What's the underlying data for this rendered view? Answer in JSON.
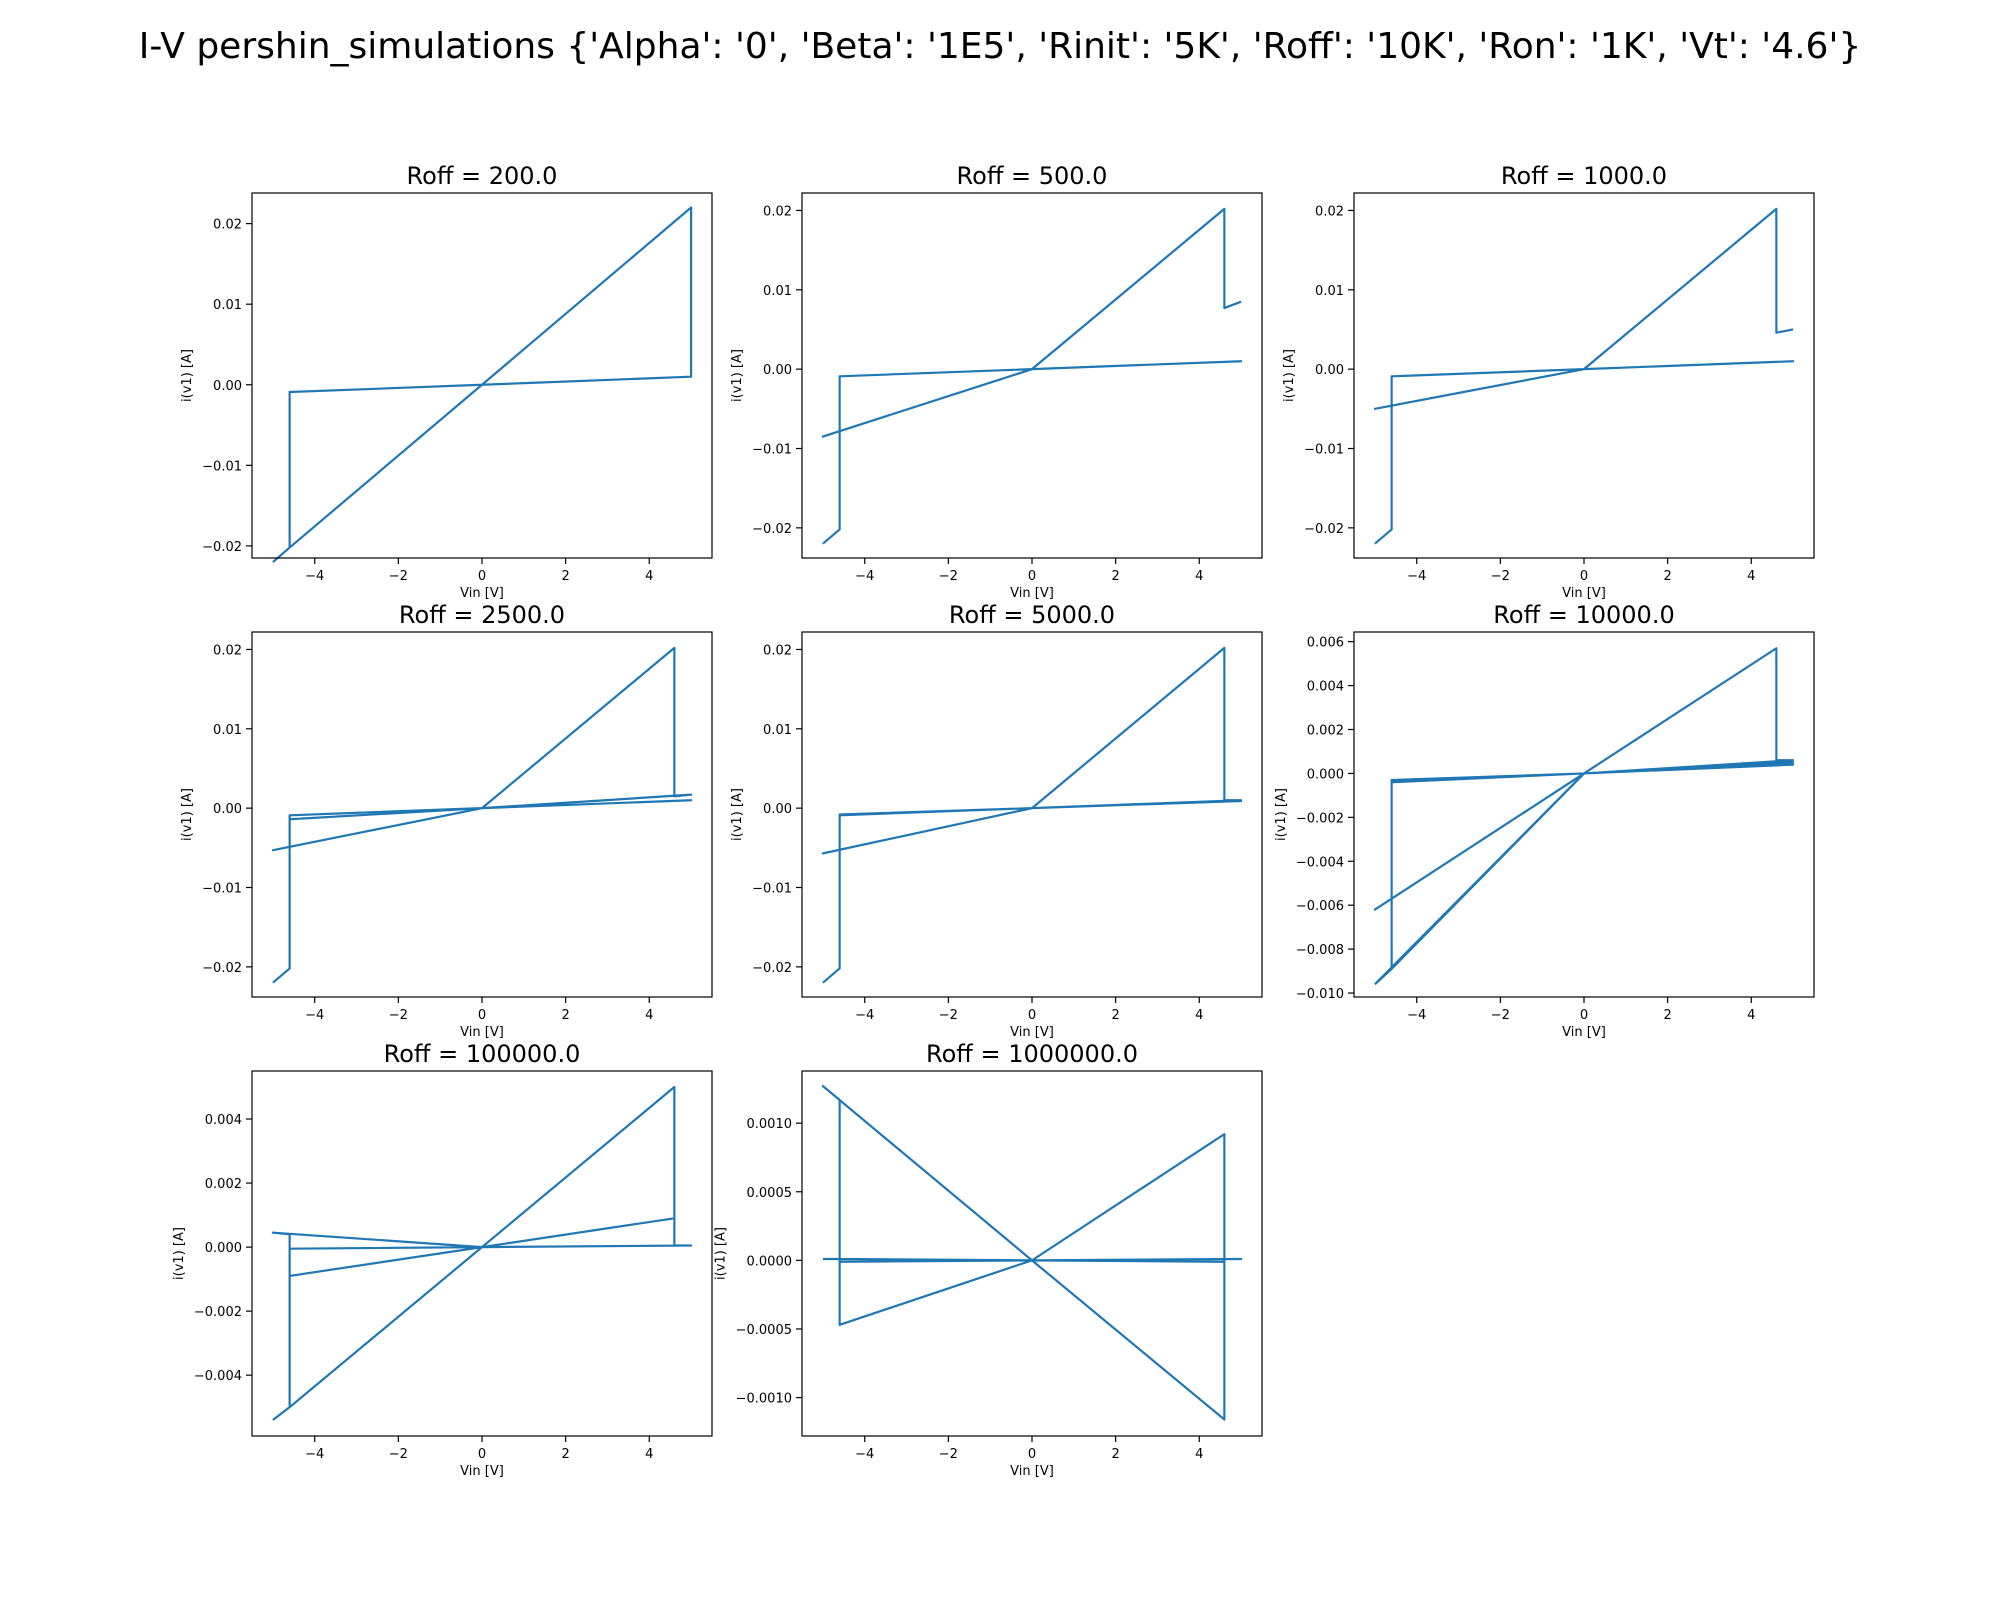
{
  "figure": {
    "title": "I-V pershin_simulations {'Alpha': '0', 'Beta': '1E5', 'Rinit': '5K', 'Roff': '10K', 'Ron': '1K', 'Vt': '4.6'}"
  },
  "colors": {
    "line": "#1f77b4",
    "axes": "#000000",
    "background": "#ffffff"
  },
  "chart_data": [
    {
      "type": "line",
      "title": "Roff = 200.0",
      "xlabel": "Vin [V]",
      "ylabel": "i(v1) [A]",
      "xlim": [
        -5.5,
        5.5
      ],
      "ylim": [
        -0.0215,
        0.0238
      ],
      "xticks": [
        -4,
        -2,
        0,
        2,
        4
      ],
      "xtick_labels": [
        "−4",
        "−2",
        "0",
        "2",
        "4"
      ],
      "yticks": [
        -0.02,
        -0.01,
        0.0,
        0.01,
        0.02
      ],
      "ytick_labels": [
        "−0.02",
        "−0.01",
        "0.00",
        "0.01",
        "0.02"
      ],
      "grid": false,
      "series": [
        {
          "x": [
            -5,
            -4.6,
            -4.6,
            0,
            5,
            5,
            0,
            -4.6,
            -4.6,
            -5
          ],
          "y": [
            -0.022,
            -0.0202,
            -0.0009,
            0,
            0.001,
            0.022,
            0,
            -0.0202,
            -0.0202,
            -0.022
          ]
        }
      ]
    },
    {
      "type": "line",
      "title": "Roff = 500.0",
      "xlabel": "Vin [V]",
      "ylabel": "i(v1) [A]",
      "xlim": [
        -5.5,
        5.5
      ],
      "ylim": [
        -0.0238,
        0.0222
      ],
      "xticks": [
        -4,
        -2,
        0,
        2,
        4
      ],
      "xtick_labels": [
        "−4",
        "−2",
        "0",
        "2",
        "4"
      ],
      "yticks": [
        -0.02,
        -0.01,
        0.0,
        0.01,
        0.02
      ],
      "ytick_labels": [
        "−0.02",
        "−0.01",
        "0.00",
        "0.01",
        "0.02"
      ],
      "grid": false,
      "series": [
        {
          "x": [
            -5,
            -4.6,
            -4.6,
            0,
            5,
            0,
            -5,
            0,
            4.6,
            4.6,
            5
          ],
          "y": [
            -0.022,
            -0.0202,
            -0.0009,
            0,
            0.001,
            0,
            -0.0085,
            0,
            0.0202,
            0.0077,
            0.0085
          ]
        }
      ]
    },
    {
      "type": "line",
      "title": "Roff = 1000.0",
      "xlabel": "Vin [V]",
      "ylabel": "i(v1) [A]",
      "xlim": [
        -5.5,
        5.5
      ],
      "ylim": [
        -0.0238,
        0.0222
      ],
      "xticks": [
        -4,
        -2,
        0,
        2,
        4
      ],
      "xtick_labels": [
        "−4",
        "−2",
        "0",
        "2",
        "4"
      ],
      "yticks": [
        -0.02,
        -0.01,
        0.0,
        0.01,
        0.02
      ],
      "ytick_labels": [
        "−0.02",
        "−0.01",
        "0.00",
        "0.01",
        "0.02"
      ],
      "grid": false,
      "series": [
        {
          "x": [
            -5,
            -4.6,
            -4.6,
            0,
            5,
            0,
            -5,
            0,
            4.6,
            4.6,
            5
          ],
          "y": [
            -0.022,
            -0.0202,
            -0.0009,
            0,
            0.001,
            0,
            -0.005,
            0,
            0.0202,
            0.0046,
            0.005
          ]
        }
      ]
    },
    {
      "type": "line",
      "title": "Roff = 2500.0",
      "xlabel": "Vin [V]",
      "ylabel": "i(v1) [A]",
      "xlim": [
        -5.5,
        5.5
      ],
      "ylim": [
        -0.0238,
        0.0222
      ],
      "xticks": [
        -4,
        -2,
        0,
        2,
        4
      ],
      "xtick_labels": [
        "−4",
        "−2",
        "0",
        "2",
        "4"
      ],
      "yticks": [
        -0.02,
        -0.01,
        0.0,
        0.01,
        0.02
      ],
      "ytick_labels": [
        "−0.02",
        "−0.01",
        "0.00",
        "0.01",
        "0.02"
      ],
      "grid": false,
      "series": [
        {
          "x": [
            -5,
            -4.6,
            -4.6,
            0,
            5,
            0,
            -5,
            0,
            4.6,
            4.6,
            5,
            0,
            -4.6,
            -4.6
          ],
          "y": [
            -0.022,
            -0.0202,
            -0.0009,
            0,
            0.001,
            0,
            -0.0053,
            0,
            0.0202,
            0.0015,
            0.0017,
            0,
            -0.0014,
            -0.0202
          ]
        }
      ]
    },
    {
      "type": "line",
      "title": "Roff = 5000.0",
      "xlabel": "Vin [V]",
      "ylabel": "i(v1) [A]",
      "xlim": [
        -5.5,
        5.5
      ],
      "ylim": [
        -0.0238,
        0.0222
      ],
      "xticks": [
        -4,
        -2,
        0,
        2,
        4
      ],
      "xtick_labels": [
        "−4",
        "−2",
        "0",
        "2",
        "4"
      ],
      "yticks": [
        -0.02,
        -0.01,
        0.0,
        0.01,
        0.02
      ],
      "ytick_labels": [
        "−0.02",
        "−0.01",
        "0.00",
        "0.01",
        "0.02"
      ],
      "grid": false,
      "series": [
        {
          "x": [
            -5,
            -4.6,
            -4.6,
            0,
            5,
            0,
            -5,
            0,
            4.6,
            4.6,
            5,
            0,
            -4.6,
            -4.6
          ],
          "y": [
            -0.022,
            -0.0202,
            -0.0008,
            0,
            0.0009,
            0,
            -0.0057,
            0,
            0.0202,
            0.001,
            0.001,
            0,
            -0.0009,
            -0.0202
          ]
        }
      ]
    },
    {
      "type": "line",
      "title": "Roff = 10000.0",
      "xlabel": "Vin [V]",
      "ylabel": "i(v1) [A]",
      "xlim": [
        -5.5,
        5.5
      ],
      "ylim": [
        -0.01018,
        0.00644
      ],
      "xticks": [
        -4,
        -2,
        0,
        2,
        4
      ],
      "xtick_labels": [
        "−4",
        "−2",
        "0",
        "2",
        "4"
      ],
      "yticks": [
        -0.01,
        -0.008,
        -0.006,
        -0.004,
        -0.002,
        0.0,
        0.002,
        0.004,
        0.006
      ],
      "ytick_labels": [
        "−0.010",
        "−0.008",
        "−0.006",
        "−0.004",
        "−0.002",
        "0.000",
        "0.002",
        "0.004",
        "0.006"
      ],
      "grid": false,
      "series": [
        {
          "x": [
            -5,
            -4.6,
            -4.6,
            0,
            5,
            0,
            -5,
            0,
            4.6,
            4.6,
            5,
            0,
            -4.6,
            -4.6,
            0,
            5,
            0,
            -5
          ],
          "y": [
            -0.0096,
            -0.0089,
            -0.0003,
            0,
            0.0005,
            0,
            -0.0062,
            0,
            0.0057,
            0.0006,
            0.0006,
            0,
            -0.0004,
            -0.0089,
            0,
            0.0004,
            0,
            -0.0096
          ]
        }
      ]
    },
    {
      "type": "line",
      "title": "Roff = 100000.0",
      "xlabel": "Vin [V]",
      "ylabel": "i(v1) [A]",
      "xlim": [
        -5.5,
        5.5
      ],
      "ylim": [
        -0.0059,
        0.0055
      ],
      "xticks": [
        -4,
        -2,
        0,
        2,
        4
      ],
      "xtick_labels": [
        "−4",
        "−2",
        "0",
        "2",
        "4"
      ],
      "yticks": [
        -0.004,
        -0.002,
        0.0,
        0.002,
        0.004
      ],
      "ytick_labels": [
        "−0.004",
        "−0.002",
        "0.000",
        "0.002",
        "0.004"
      ],
      "grid": false,
      "series": [
        {
          "x": [
            -5,
            -4.6,
            -4.6,
            0,
            5,
            0,
            -5,
            -4.6,
            -4.6,
            0,
            4.6,
            4.6,
            5,
            0,
            -4.6,
            -4.6,
            0,
            4.6,
            4.6
          ],
          "y": [
            -0.0054,
            -0.005,
            -5e-05,
            0,
            5e-05,
            0,
            0.00045,
            0.0004,
            -0.0009,
            0,
            0.0009,
            5e-05,
            5e-05,
            0,
            -5e-05,
            -0.005,
            0,
            0.005,
            5e-05
          ]
        }
      ]
    },
    {
      "type": "line",
      "title": "Roff = 1000000.0",
      "xlabel": "Vin [V]",
      "ylabel": "i(v1) [A]",
      "xlim": [
        -5.5,
        5.5
      ],
      "ylim": [
        -0.00128,
        0.00138
      ],
      "xticks": [
        -4,
        -2,
        0,
        2,
        4
      ],
      "xtick_labels": [
        "−4",
        "−2",
        "0",
        "2",
        "4"
      ],
      "yticks": [
        -0.001,
        -0.0005,
        0.0,
        0.0005,
        0.001
      ],
      "ytick_labels": [
        "−0.0010",
        "−0.0005",
        "0.0000",
        "0.0005",
        "0.0010"
      ],
      "grid": false,
      "series": [
        {
          "x": [
            -5,
            -4.6,
            -4.6,
            0,
            5,
            0,
            -5,
            -4.6,
            -4.6,
            0,
            4.6,
            4.6,
            0,
            -4.6,
            -4.6,
            0,
            4.6,
            4.6
          ],
          "y": [
            1e-05,
            1e-05,
            -0.00047,
            0,
            1e-05,
            0,
            0.00127,
            0.00117,
            -1e-05,
            0,
            0.00092,
            -1e-05,
            0,
            1e-05,
            1e-05,
            0,
            -0.00116,
            0.00014
          ]
        }
      ]
    }
  ]
}
